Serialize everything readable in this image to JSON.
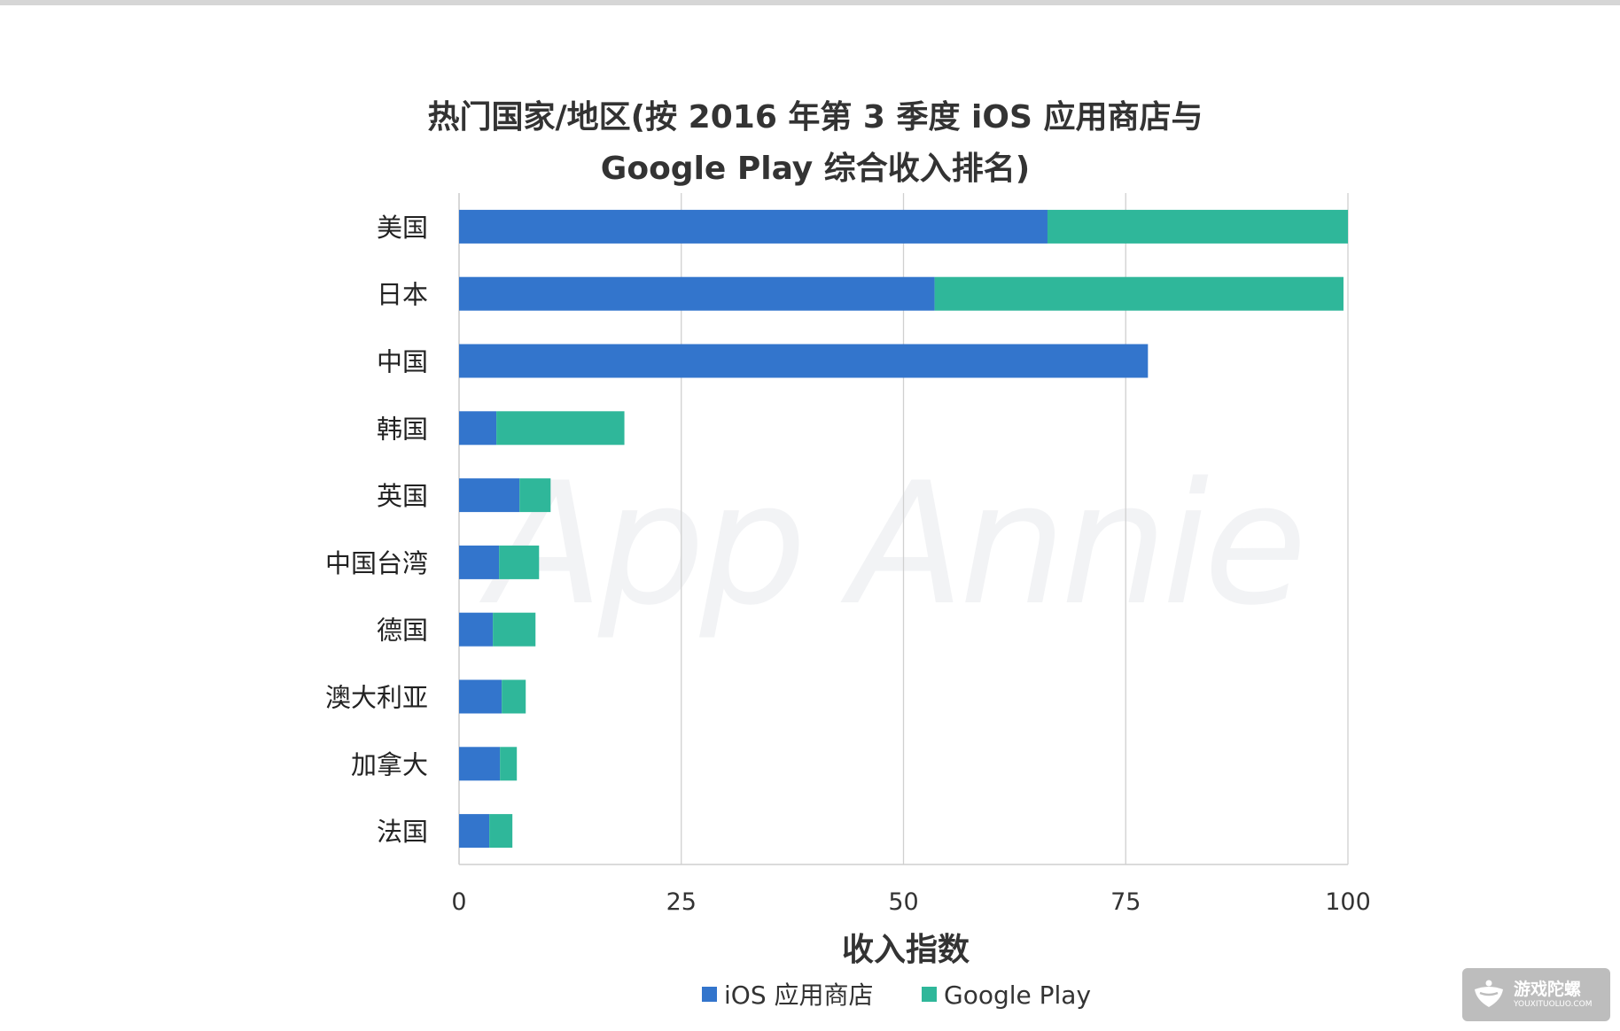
{
  "chart_data": {
    "type": "bar",
    "orientation": "horizontal",
    "stacked": true,
    "title_lines": [
      "热门国家/地区(按 2016 年第 3 季度 iOS 应用商店与",
      "Google Play 综合收入排名)"
    ],
    "xlabel": "收入指数",
    "xlim": [
      0,
      100
    ],
    "xticks": [
      "0",
      "25",
      "50",
      "75",
      "100"
    ],
    "grid": true,
    "legend_position": "bottom",
    "categories": [
      "美国",
      "日本",
      "中国",
      "韩国",
      "英国",
      "中国台湾",
      "德国",
      "澳大利亚",
      "加拿大",
      "法国"
    ],
    "series": [
      {
        "name": "iOS 应用商店",
        "color": "#3375cc",
        "values": [
          66.2,
          53.5,
          77.5,
          4.2,
          6.8,
          4.5,
          3.8,
          4.8,
          4.6,
          3.4
        ]
      },
      {
        "name": "Google Play",
        "color": "#2fb79a",
        "values": [
          33.8,
          46.0,
          0,
          14.4,
          3.5,
          4.5,
          4.8,
          2.7,
          1.9,
          2.6
        ]
      }
    ]
  },
  "watermark": {
    "text": "App Annie"
  },
  "badge": {
    "name": "游戏陀螺",
    "url": "YOUXITUOLUO.COM",
    "icon": "spinning-top-icon"
  }
}
